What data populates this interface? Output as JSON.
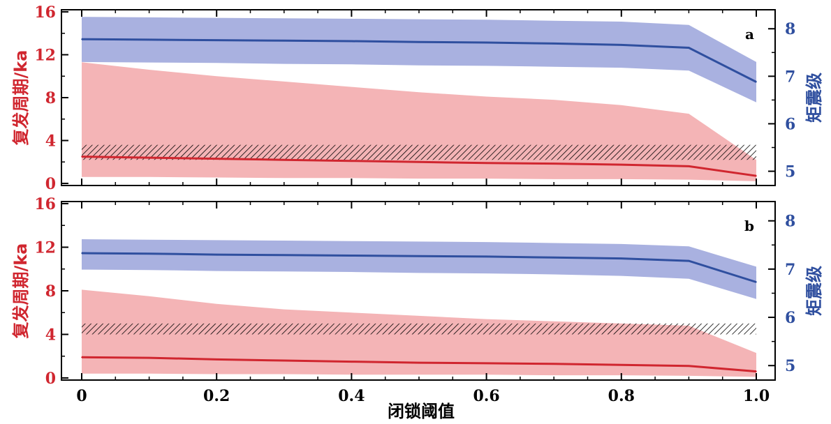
{
  "colors": {
    "recurrence": "#d0262f",
    "recurrence_band": "#f4b4b6",
    "magnitude": "#2f4f9f",
    "magnitude_band": "#a9b1e0",
    "hatch": "#000000"
  },
  "chart_data": [
    {
      "type": "line",
      "panel_label": "a",
      "xlabel": "",
      "ylabel_left": "复发周期/ka",
      "ylabel_right": "矩震级",
      "xlim": [
        0,
        1.0
      ],
      "ylim_left": [
        0,
        16
      ],
      "ylim_right": [
        4.7,
        8.4
      ],
      "x_ticks": [
        "",
        "",
        "",
        "",
        "",
        ""
      ],
      "y_ticks_left": [
        "0",
        "4",
        "8",
        "12",
        "16"
      ],
      "y_ticks_right": [
        "5",
        "6",
        "7",
        "8"
      ],
      "x": [
        0,
        0.1,
        0.2,
        0.3,
        0.4,
        0.5,
        0.6,
        0.7,
        0.8,
        0.9,
        1.0
      ],
      "series": [
        {
          "axis": "left",
          "values": [
            2.5,
            2.4,
            2.3,
            2.2,
            2.1,
            2.0,
            1.9,
            1.85,
            1.75,
            1.6,
            0.7
          ],
          "band_lower": [
            0.6,
            0.6,
            0.55,
            0.5,
            0.5,
            0.45,
            0.45,
            0.4,
            0.4,
            0.35,
            0.2
          ],
          "band_upper": [
            11.3,
            10.6,
            10.0,
            9.5,
            9.0,
            8.5,
            8.1,
            7.8,
            7.3,
            6.5,
            2.2
          ]
        },
        {
          "axis": "right",
          "values": [
            7.78,
            7.77,
            7.76,
            7.75,
            7.74,
            7.72,
            7.71,
            7.69,
            7.66,
            7.6,
            6.88
          ],
          "band_lower": [
            7.3,
            7.29,
            7.28,
            7.26,
            7.25,
            7.23,
            7.22,
            7.2,
            7.18,
            7.12,
            6.45
          ],
          "band_upper": [
            8.25,
            8.24,
            8.23,
            8.22,
            8.21,
            8.2,
            8.19,
            8.17,
            8.15,
            8.08,
            7.3
          ]
        }
      ],
      "hatched_band": {
        "axis": "left",
        "y_range": [
          2.2,
          3.6
        ]
      }
    },
    {
      "type": "line",
      "panel_label": "b",
      "xlabel": "闭锁阈值",
      "ylabel_left": "复发周期/ka",
      "ylabel_right": "矩震级",
      "xlim": [
        0,
        1.0
      ],
      "ylim_left": [
        0,
        16
      ],
      "ylim_right": [
        4.7,
        8.4
      ],
      "x_ticks": [
        "0",
        "0.2",
        "0.4",
        "0.6",
        "0.8",
        "1.0"
      ],
      "y_ticks_left": [
        "0",
        "4",
        "8",
        "12",
        "16"
      ],
      "y_ticks_right": [
        "5",
        "6",
        "7",
        "8"
      ],
      "x": [
        0,
        0.1,
        0.2,
        0.3,
        0.4,
        0.5,
        0.6,
        0.7,
        0.8,
        0.9,
        1.0
      ],
      "series": [
        {
          "axis": "left",
          "values": [
            1.9,
            1.85,
            1.7,
            1.6,
            1.5,
            1.4,
            1.35,
            1.3,
            1.2,
            1.1,
            0.6
          ],
          "band_lower": [
            0.4,
            0.4,
            0.35,
            0.35,
            0.3,
            0.3,
            0.3,
            0.25,
            0.25,
            0.2,
            0.1
          ],
          "band_upper": [
            8.1,
            7.5,
            6.8,
            6.3,
            6.0,
            5.7,
            5.4,
            5.2,
            5.0,
            4.8,
            2.3
          ]
        },
        {
          "axis": "right",
          "values": [
            7.33,
            7.32,
            7.3,
            7.29,
            7.28,
            7.27,
            7.26,
            7.24,
            7.22,
            7.17,
            6.73
          ],
          "band_lower": [
            6.99,
            6.98,
            6.96,
            6.95,
            6.94,
            6.92,
            6.91,
            6.89,
            6.86,
            6.8,
            6.38
          ],
          "band_upper": [
            7.62,
            7.61,
            7.6,
            7.59,
            7.58,
            7.57,
            7.56,
            7.54,
            7.52,
            7.47,
            7.05
          ]
        }
      ],
      "hatched_band": {
        "axis": "left",
        "y_range": [
          4.0,
          5.0
        ]
      }
    }
  ]
}
